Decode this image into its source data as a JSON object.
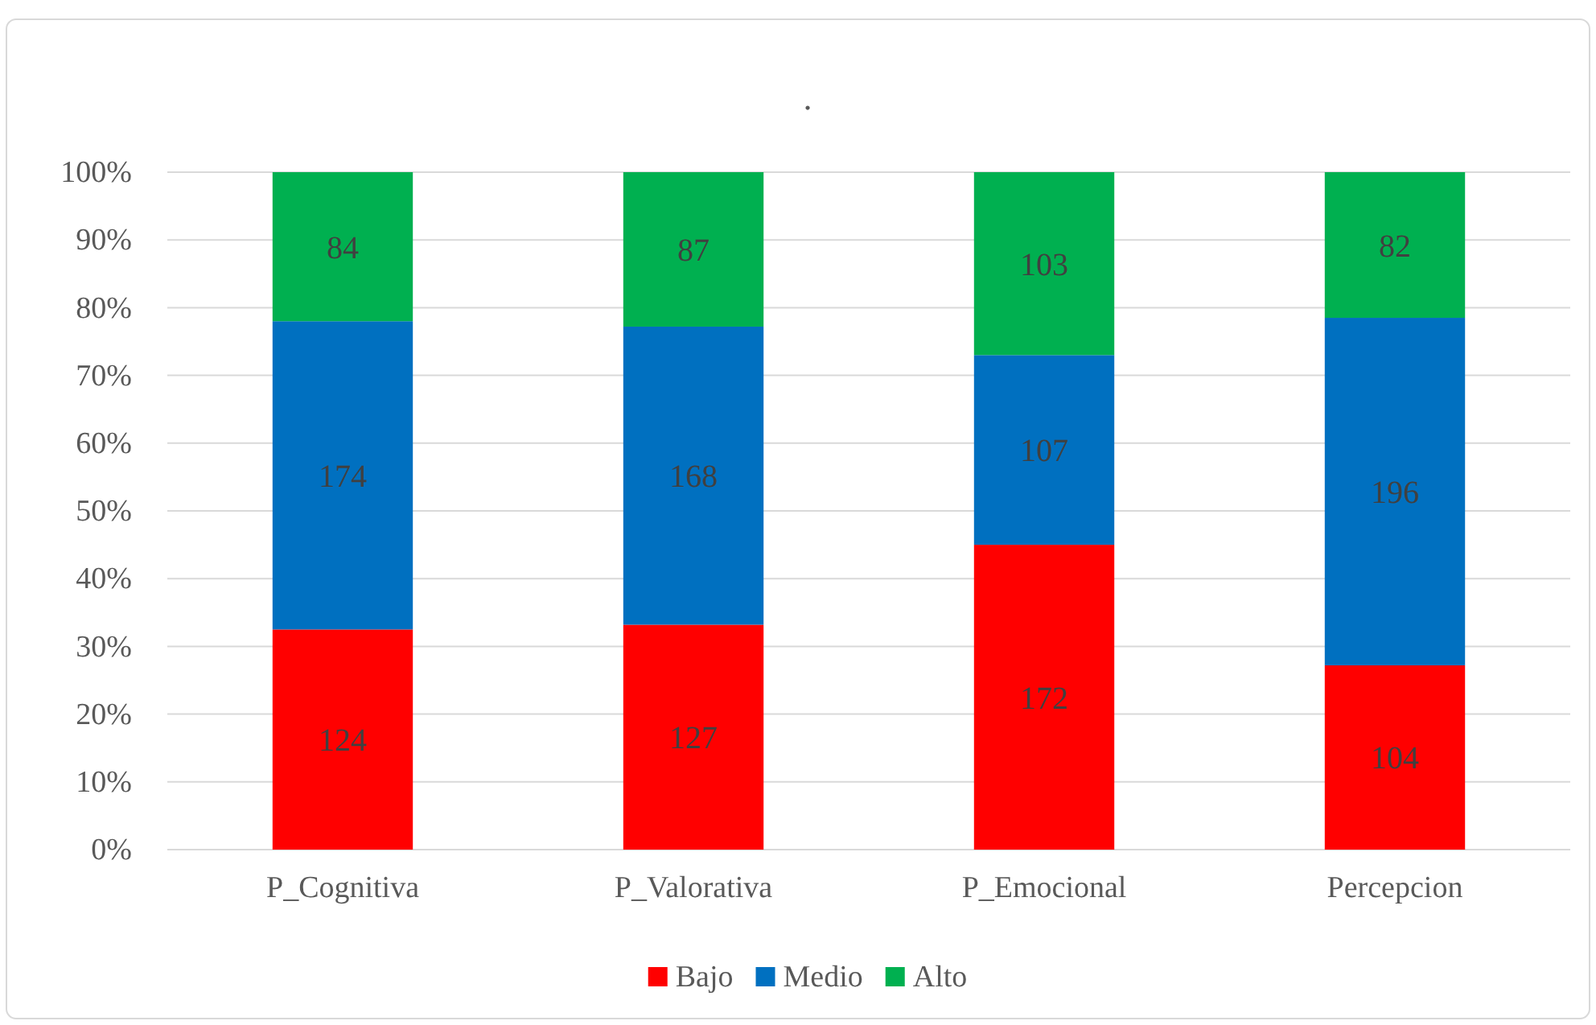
{
  "chart_data": {
    "type": "bar",
    "title": ".",
    "stacked": true,
    "categories": [
      "P_Cognitiva",
      "P_Valorativa",
      "P_Emocional",
      "Percepcion"
    ],
    "series": [
      {
        "name": "Bajo",
        "color": "#ff0000",
        "values": [
          32.5,
          33.2,
          45.0,
          27.2
        ]
      },
      {
        "name": "Medio",
        "color": "#0070c0",
        "values": [
          45.5,
          44.0,
          28.0,
          51.3
        ]
      },
      {
        "name": "Alto",
        "color": "#00b050",
        "values": [
          22.0,
          22.8,
          27.0,
          21.5
        ]
      }
    ],
    "annotations": [
      "124",
      "127",
      "172",
      "104",
      "174",
      "168",
      "107",
      "196",
      "84",
      "87",
      "103",
      "82"
    ],
    "ylim": [
      0,
      100
    ],
    "yticks": [
      {
        "value": 0,
        "label": "0%"
      },
      {
        "value": 10,
        "label": "10%"
      },
      {
        "value": 20,
        "label": "20%"
      },
      {
        "value": 30,
        "label": "30%"
      },
      {
        "value": 40,
        "label": "40%"
      },
      {
        "value": 50,
        "label": "50%"
      },
      {
        "value": 60,
        "label": "60%"
      },
      {
        "value": 70,
        "label": "70%"
      },
      {
        "value": 80,
        "label": "80%"
      },
      {
        "value": 90,
        "label": "90%"
      },
      {
        "value": 100,
        "label": "100%"
      }
    ],
    "grid": "y",
    "legend": "bottom"
  }
}
